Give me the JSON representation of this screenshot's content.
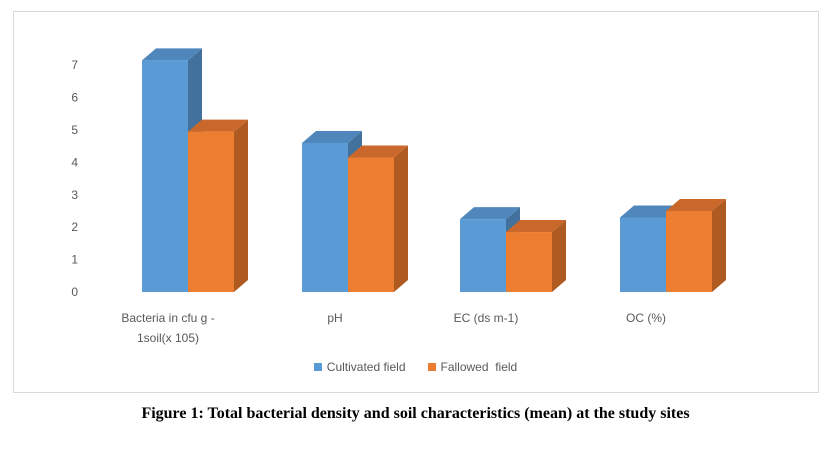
{
  "chart_data": {
    "type": "bar",
    "categories": [
      "Bacteria in cfu g -1soil(x 105)",
      "pH",
      "EC (ds m-1)",
      "OC (%)"
    ],
    "series": [
      {
        "name": "Cultivated field",
        "values": [
          7.15,
          4.6,
          2.25,
          2.3
        ],
        "color": "#5b9bd5"
      },
      {
        "name": "Fallowed  field",
        "values": [
          4.95,
          4.15,
          1.85,
          2.5
        ],
        "color": "#ed7d31"
      }
    ],
    "ylim": [
      0,
      7
    ],
    "yticks": [
      "0",
      "1",
      "2",
      "3",
      "4",
      "5",
      "6",
      "7"
    ],
    "legend_position": "bottom",
    "grid": false
  },
  "caption": "Figure 1: Total bacterial density and soil characteristics (mean) at the study sites"
}
